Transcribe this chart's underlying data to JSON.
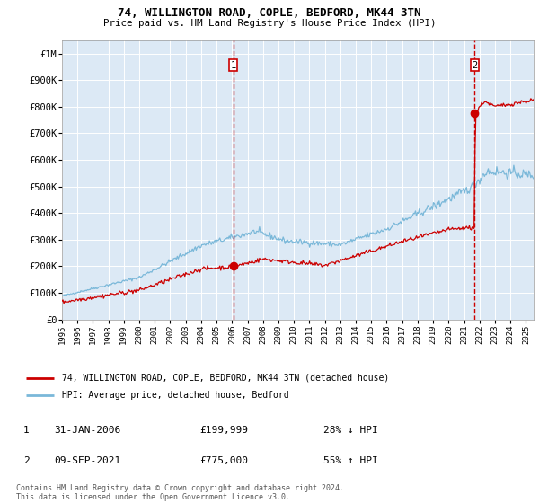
{
  "title": "74, WILLINGTON ROAD, COPLE, BEDFORD, MK44 3TN",
  "subtitle": "Price paid vs. HM Land Registry's House Price Index (HPI)",
  "background_color": "#dce9f5",
  "plot_bg_color": "#dce9f5",
  "outer_bg_color": "#ffffff",
  "ylim": [
    0,
    1050000
  ],
  "yticks": [
    0,
    100000,
    200000,
    300000,
    400000,
    500000,
    600000,
    700000,
    800000,
    900000,
    1000000
  ],
  "ytick_labels": [
    "£0",
    "£100K",
    "£200K",
    "£300K",
    "£400K",
    "£500K",
    "£600K",
    "£700K",
    "£800K",
    "£900K",
    "£1M"
  ],
  "xlim_start": 1995.0,
  "xlim_end": 2025.5,
  "xticks": [
    1995,
    1996,
    1997,
    1998,
    1999,
    2000,
    2001,
    2002,
    2003,
    2004,
    2005,
    2006,
    2007,
    2008,
    2009,
    2010,
    2011,
    2012,
    2013,
    2014,
    2015,
    2016,
    2017,
    2018,
    2019,
    2020,
    2021,
    2022,
    2023,
    2024,
    2025
  ],
  "purchase1_date": 2006.08,
  "purchase1_price": 199999,
  "purchase1_label": "1",
  "purchase2_date": 2021.69,
  "purchase2_price": 775000,
  "purchase2_label": "2",
  "legend_line1": "74, WILLINGTON ROAD, COPLE, BEDFORD, MK44 3TN (detached house)",
  "legend_line2": "HPI: Average price, detached house, Bedford",
  "annotation1_num": "1",
  "annotation1_date": "31-JAN-2006",
  "annotation1_price": "£199,999",
  "annotation1_hpi": "28% ↓ HPI",
  "annotation2_num": "2",
  "annotation2_date": "09-SEP-2021",
  "annotation2_price": "£775,000",
  "annotation2_hpi": "55% ↑ HPI",
  "footer": "Contains HM Land Registry data © Crown copyright and database right 2024.\nThis data is licensed under the Open Government Licence v3.0.",
  "hpi_line_color": "#7ab8d9",
  "price_line_color": "#cc0000",
  "marker_color": "#cc0000",
  "vline_color": "#cc0000",
  "grid_color": "#ffffff"
}
